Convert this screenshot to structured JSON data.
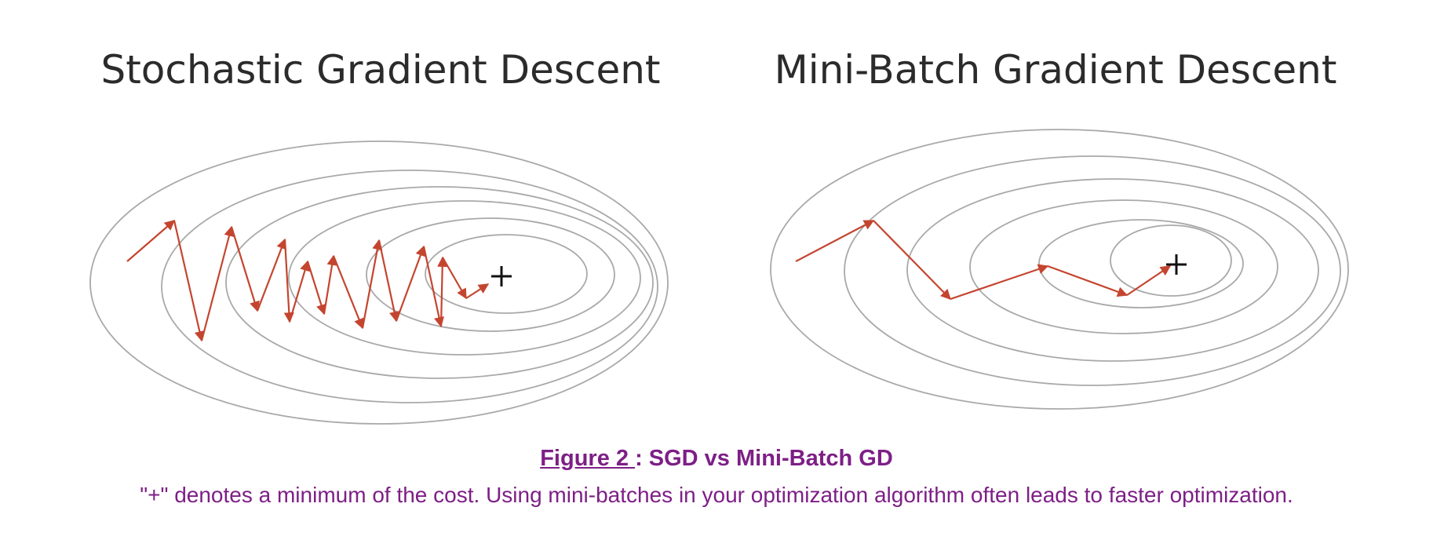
{
  "panels": [
    {
      "title": "Stochastic Gradient Descent"
    },
    {
      "title": "Mini-Batch Gradient Descent"
    }
  ],
  "minimum_marker": "+",
  "colors": {
    "contour": "#a9a9a9",
    "path": "#c4452f",
    "caption": "#7d1f86"
  },
  "caption": {
    "figure_label": "Figure 2 ",
    "separator": ": ",
    "title": "SGD vs Mini-Batch GD",
    "note": "\"+\" denotes a minimum of the cost. Using mini-batches in your optimization algorithm often leads to faster optimization."
  }
}
